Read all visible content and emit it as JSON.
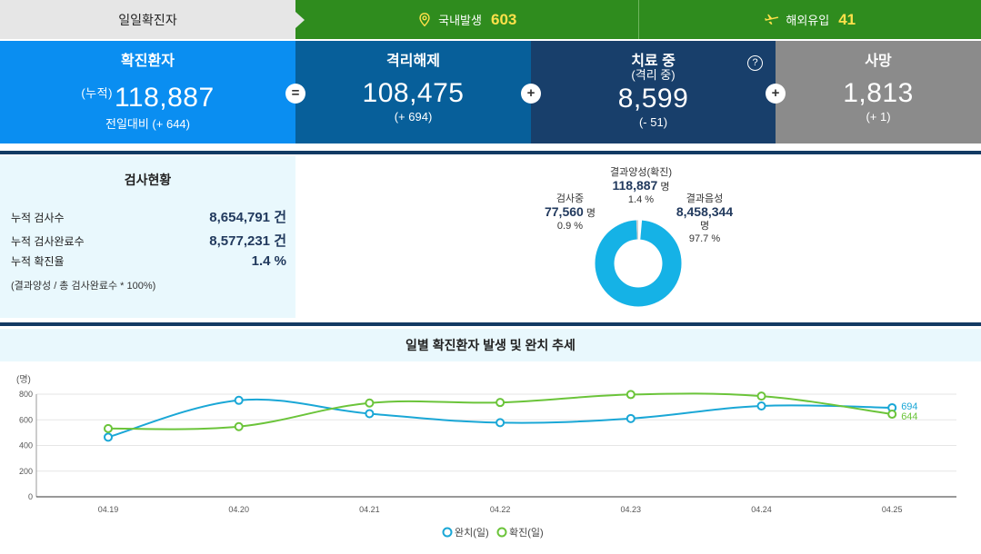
{
  "topbar": {
    "label": "일일확진자",
    "domestic": {
      "label": "국내발생",
      "value": "603",
      "icon": "location-pin-icon"
    },
    "overseas": {
      "label": "해외유입",
      "value": "41",
      "icon": "airplane-icon"
    }
  },
  "stats": {
    "confirmed": {
      "title": "확진환자",
      "prefix": "(누적)",
      "value": "118,887",
      "delta": "전일대비 (+ 644)"
    },
    "released": {
      "title": "격리해제",
      "value": "108,475",
      "delta": "(+ 694)"
    },
    "treating": {
      "title": "치료 중",
      "subtitle": "(격리 중)",
      "value": "8,599",
      "delta": "(- 51)",
      "help": "?"
    },
    "deaths": {
      "title": "사망",
      "value": "1,813",
      "delta": "(+ 1)"
    },
    "ops": [
      "=",
      "+",
      "+"
    ]
  },
  "tests": {
    "title": "검사현황",
    "rows": [
      {
        "label": "누적 검사수",
        "value": "8,654,791 건"
      },
      {
        "label": "누적 검사완료수",
        "value": "8,577,231 건"
      },
      {
        "label": "누적 확진율",
        "value": "1.4 %"
      }
    ],
    "note": "(결과양성 / 총 검사완료수 * 100%)"
  },
  "donut": {
    "segments": [
      {
        "label": "결과양성(확진)",
        "value": "118,887",
        "unit": "명",
        "pct": "1.4 %",
        "fraction": 0.014,
        "color": "#ffffff"
      },
      {
        "label": "결과음성",
        "value": "8,458,344",
        "unit": "명",
        "pct": "97.7 %",
        "fraction": 0.977,
        "color": "#15b2e6"
      },
      {
        "label": "검사중",
        "value": "77,560",
        "unit": "명",
        "pct": "0.9 %",
        "fraction": 0.009,
        "color": "#cfcfcf"
      }
    ]
  },
  "trend": {
    "title": "일별 확진환자 발생 및 완치 추세"
  },
  "chart_data": {
    "type": "line",
    "title": "일별 확진환자 발생 및 완치 추세",
    "ylabel": "(명)",
    "ylim": [
      0,
      800
    ],
    "yticks": [
      0,
      200,
      400,
      600,
      800
    ],
    "categories": [
      "04.19",
      "04.20",
      "04.21",
      "04.22",
      "04.23",
      "04.24",
      "04.25"
    ],
    "series": [
      {
        "name": "완치(일)",
        "color": "#1aa7d6",
        "values": [
          465,
          752,
          648,
          578,
          610,
          708,
          694
        ],
        "end_label": "694"
      },
      {
        "name": "확진(일)",
        "color": "#6bc43a",
        "values": [
          532,
          547,
          731,
          735,
          797,
          785,
          644
        ],
        "end_label": "644"
      }
    ],
    "legend": "bottom-center",
    "grid": true
  }
}
